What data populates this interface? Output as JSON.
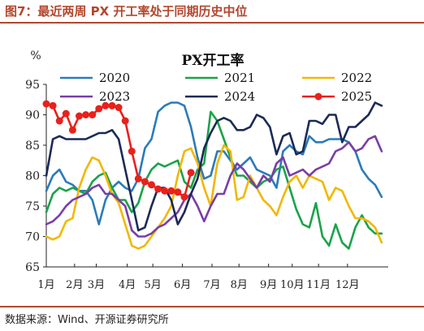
{
  "figure": {
    "title": "图7：最近两周 PX 开工率处于同期历史中位",
    "source": "数据来源：Wind、开源证券研究所"
  },
  "chart_data": {
    "type": "line",
    "title": "PX开工率",
    "ylabel": "%",
    "ylim": [
      65,
      95
    ],
    "yticks": [
      65,
      70,
      75,
      80,
      85,
      90,
      95
    ],
    "xlim": [
      0,
      52
    ],
    "xticks": [
      {
        "label": "1月",
        "x": 0
      },
      {
        "label": "2月",
        "x": 4.3
      },
      {
        "label": "3月",
        "x": 7.6
      },
      {
        "label": "4月",
        "x": 12.3
      },
      {
        "label": "5月",
        "x": 16.2
      },
      {
        "label": "6月",
        "x": 20.7
      },
      {
        "label": "7月",
        "x": 25.2
      },
      {
        "label": "8月",
        "x": 29.3
      },
      {
        "label": "9月",
        "x": 33.8
      },
      {
        "label": "10月",
        "x": 37.4
      },
      {
        "label": "11月",
        "x": 41.4
      },
      {
        "label": "12月",
        "x": 45.8
      }
    ],
    "legend_position": "top, three columns",
    "series": [
      {
        "name": "2020",
        "color": "#2b7bba",
        "markers": false,
        "values": [
          77.5,
          80,
          81,
          79,
          78.5,
          77.5,
          77.5,
          76,
          72,
          76,
          78,
          79,
          78,
          77.5,
          79.5,
          84.5,
          86,
          90.5,
          91.5,
          92,
          92,
          91.5,
          88,
          83,
          79.5,
          80,
          84,
          84,
          82.5,
          81,
          82,
          83,
          81,
          80.5,
          80,
          78,
          84,
          85,
          84,
          83.5,
          86.5,
          85.5,
          85.5,
          86,
          86,
          86,
          85.5,
          84,
          81,
          79.5,
          78.5,
          76.5
        ]
      },
      {
        "name": "2021",
        "color": "#1aa34a",
        "markers": false,
        "values": [
          74,
          77,
          78,
          77.5,
          78,
          77.5,
          77,
          79,
          80,
          80.5,
          78,
          76,
          76,
          74,
          75.5,
          79,
          81,
          82,
          81.5,
          82,
          82.5,
          79,
          78,
          81,
          82,
          90.5,
          89,
          86,
          83,
          80,
          80,
          79,
          78,
          79,
          79.5,
          81,
          81.5,
          78,
          74.5,
          72,
          71.5,
          75.5,
          70,
          68.5,
          72,
          69,
          68,
          71.5,
          73.5,
          71.5,
          70.5,
          70.5
        ]
      },
      {
        "name": "2022",
        "color": "#f2b705",
        "markers": false,
        "values": [
          70,
          69.5,
          70,
          72.5,
          73,
          78,
          81,
          83,
          82.5,
          80,
          77,
          75.5,
          72,
          68.5,
          68,
          68.5,
          70,
          71.5,
          73,
          75,
          80,
          84,
          84.5,
          82,
          78,
          75,
          82,
          85,
          84,
          76,
          76.5,
          80,
          78,
          76,
          75,
          73.5,
          76.5,
          79,
          80,
          78,
          80,
          79.5,
          79,
          76,
          78,
          77.5,
          75,
          73,
          73,
          72.5,
          71.5,
          69
        ]
      },
      {
        "name": "2023",
        "color": "#7a3ea6",
        "markers": false,
        "values": [
          72,
          72.5,
          73.5,
          75,
          76,
          76.5,
          77,
          78,
          78.5,
          77,
          77,
          76,
          75,
          71,
          70,
          70,
          70.5,
          71.5,
          72,
          73,
          74,
          76,
          77,
          75,
          72.5,
          75,
          77,
          77,
          80,
          82,
          81,
          79.5,
          78,
          80,
          79,
          82,
          83,
          80,
          80.5,
          81,
          80,
          81,
          81.5,
          82,
          84,
          84.5,
          85.5,
          84,
          84.5,
          86,
          86.5,
          84
        ]
      },
      {
        "name": "2024",
        "color": "#1b2a57",
        "markers": false,
        "values": [
          80,
          86,
          86.5,
          86,
          86,
          86,
          86,
          86.5,
          87,
          87,
          87.5,
          86,
          81,
          76,
          71,
          71.5,
          75,
          78,
          78,
          76,
          72,
          74,
          77,
          79.5,
          84.5,
          87,
          89,
          89.5,
          89,
          87.5,
          87.5,
          88,
          90,
          89.5,
          88,
          83.5,
          86.5,
          87,
          83.5,
          84,
          89,
          89,
          88.5,
          90,
          90,
          85.5,
          88,
          88,
          89,
          90,
          92,
          91.5
        ]
      },
      {
        "name": "2025",
        "color": "#e8211c",
        "markers": true,
        "values": [
          91.8,
          91.5,
          89,
          90.2,
          87.5,
          89.8,
          90,
          90,
          91,
          91.5,
          91.5,
          91.2,
          89,
          84,
          79.5,
          79,
          78.5,
          77.8,
          77.5,
          77.5,
          77.3,
          76.5,
          80.5
        ]
      }
    ]
  }
}
